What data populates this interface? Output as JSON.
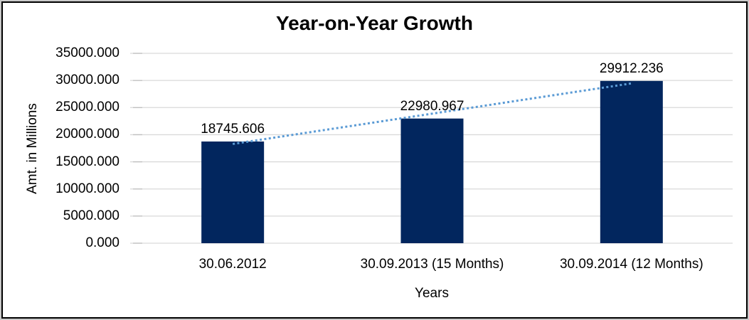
{
  "frame": {
    "border_color": "#000000",
    "outer_edge_color": "#c9c9c9",
    "background": "#ffffff"
  },
  "chart_data": {
    "type": "bar",
    "title": "Year-on-Year Growth",
    "xlabel": "Years",
    "ylabel": "Amt. in Millions",
    "categories": [
      "30.06.2012",
      "30.09.2013 (15 Months)",
      "30.09.2014 (12 Months)"
    ],
    "values": [
      18745.606,
      22980.967,
      29912.236
    ],
    "data_labels": [
      "18745.606",
      "22980.967",
      "29912.236"
    ],
    "y_ticks": [
      "0.000",
      "5000.000",
      "10000.000",
      "15000.000",
      "20000.000",
      "25000.000",
      "30000.000",
      "35000.000"
    ],
    "ylim": [
      0,
      35000
    ],
    "grid": true,
    "legend_position": "none",
    "bar_color": "#02265E",
    "gridline_color": "#D9D9D9",
    "tick_color": "#BFBFBF",
    "label_color": "#000000",
    "trendline": {
      "kind": "linear",
      "style": "dotted",
      "color": "#5B9BD5"
    }
  }
}
